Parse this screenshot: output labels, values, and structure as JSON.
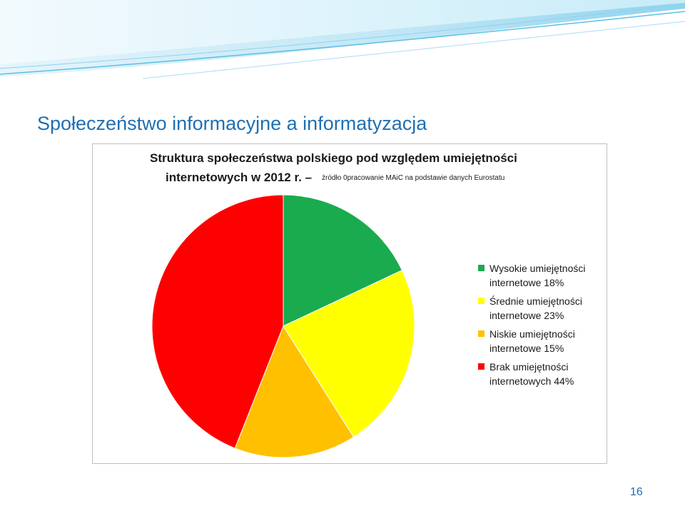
{
  "slide": {
    "title": "Społeczeństwo informacyjne a informatyzacja",
    "page_number": "16"
  },
  "chart_data": {
    "type": "pie",
    "title": "Struktura społeczeństwa polskiego pod względem umiejętności",
    "title_line2": "internetowych w 2012 r. –",
    "source_note": "źródło 0pracowanie MAiC na podstawie danych Eurostatu",
    "legend_position": "right",
    "slices": [
      {
        "label": "Wysokie umiejętności internetowe 18%",
        "value": 18,
        "color": "#1aab4e"
      },
      {
        "label": "Średnie umiejętności internetowe 23%",
        "value": 23,
        "color": "#ffff00"
      },
      {
        "label": "Niskie umiejętności internetowe 15%",
        "value": 15,
        "color": "#ffc000"
      },
      {
        "label": "Brak umiejętności internetowych 44%",
        "value": 44,
        "color": "#ff0000"
      }
    ]
  }
}
